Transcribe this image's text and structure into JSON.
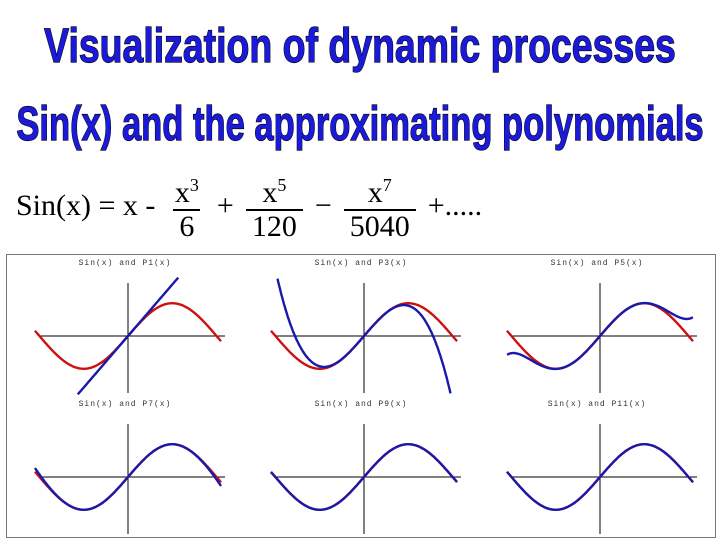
{
  "title": {
    "line1": "Visualization  of dynamic processes",
    "line2": "Sin(x) and the approximating polynomials"
  },
  "formula": {
    "lhs": "Sin(x) = x - ",
    "term3_num": "x",
    "term3_exp": "3",
    "term3_den": "6",
    "op1": "+",
    "term5_num": "x",
    "term5_exp": "5",
    "term5_den": "120",
    "op2": "−",
    "term7_num": "x",
    "term7_exp": "7",
    "term7_den": "5040",
    "tail": "+....."
  },
  "colors": {
    "title_fill": "#1a1ad8",
    "sin_curve": "#cc1111",
    "poly_curve": "#1a1aaa"
  },
  "plots": [
    {
      "label": "Sin(x)  and  P1(x)",
      "degree": 1
    },
    {
      "label": "Sin(x)  and  P3(x)",
      "degree": 3
    },
    {
      "label": "Sin(x)  and  P5(x)",
      "degree": 5
    },
    {
      "label": "Sin(x)  and  P7(x)",
      "degree": 7
    },
    {
      "label": "Sin(x)  and  P9(x)",
      "degree": 9
    },
    {
      "label": "Sin(x)  and  P11(x)",
      "degree": 11
    }
  ],
  "chart_data": {
    "type": "line",
    "function": "sin(x)",
    "series": [
      {
        "name": "Sin(x)",
        "color": "#cc1111"
      },
      {
        "name": "P1(x)",
        "degree": 1
      },
      {
        "name": "P3(x)",
        "degree": 3
      },
      {
        "name": "P5(x)",
        "degree": 5
      },
      {
        "name": "P7(x)",
        "degree": 7
      },
      {
        "name": "P9(x)",
        "degree": 9
      },
      {
        "name": "P11(x)",
        "degree": 11
      }
    ],
    "xlim": [
      -3.3,
      3.3
    ],
    "ylim": [
      -1.8,
      1.8
    ]
  }
}
